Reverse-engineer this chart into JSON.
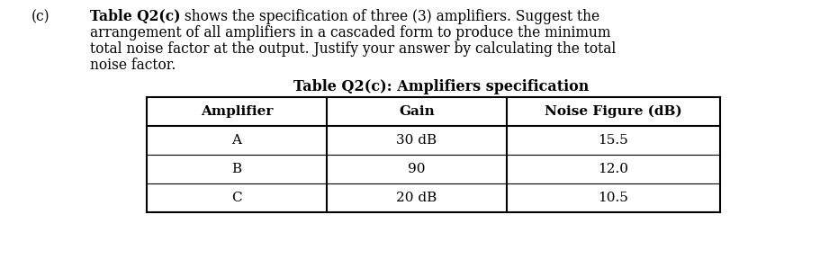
{
  "label_c": "(c)",
  "line1_bold": "Table Q2(c)",
  "line1_rest": " shows the specification of three (3) amplifiers. Suggest the",
  "line2": "arrangement of all amplifiers in a cascaded form to produce the minimum",
  "line3": "total noise factor at the output. Justify your answer by calculating the total",
  "line4": "noise factor.",
  "table_title": "Table Q2(c): Amplifiers specification",
  "col_headers": [
    "Amplifier",
    "Gain",
    "Noise Figure (dB)"
  ],
  "rows": [
    [
      "A",
      "30 dB",
      "15.5"
    ],
    [
      "B",
      "90",
      "12.0"
    ],
    [
      "C",
      "20 dB",
      "10.5"
    ]
  ],
  "bg_color": "#ffffff",
  "text_color": "#000000",
  "font_size": 11.2,
  "font_size_table_title": 11.5,
  "font_size_table": 11.0
}
